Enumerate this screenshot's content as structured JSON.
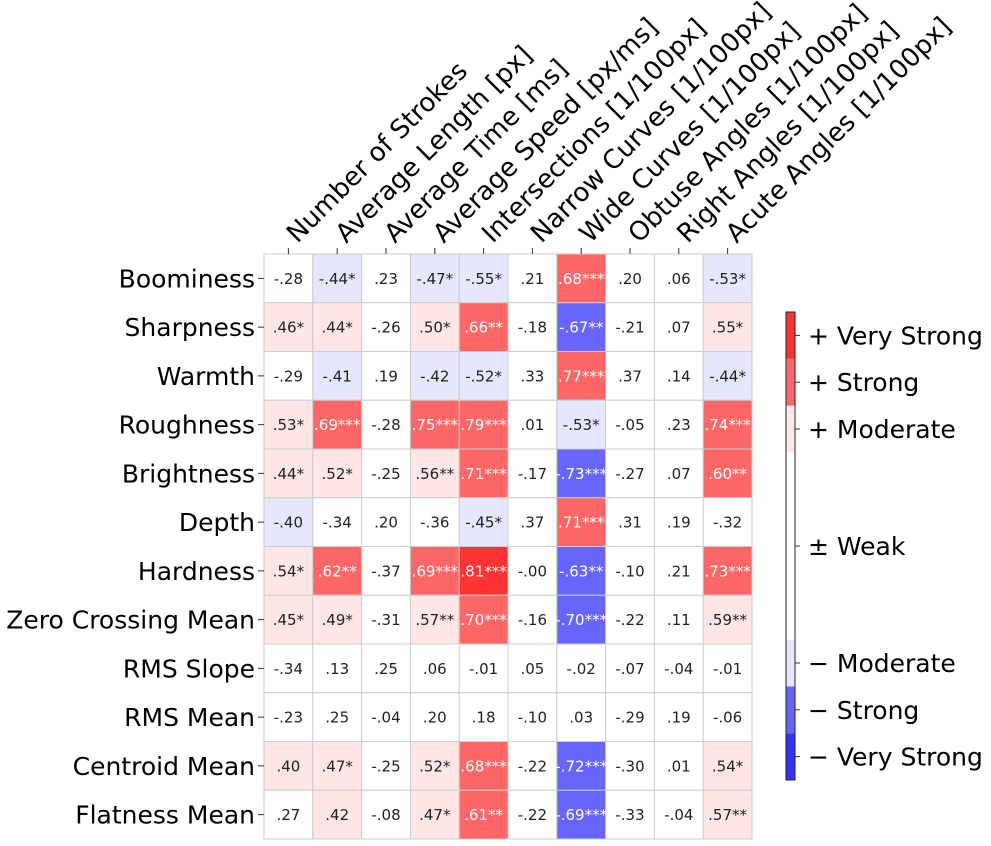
{
  "chart_data": {
    "type": "heatmap",
    "x_labels": [
      "Number of Strokes",
      "Average Length [px]",
      "Average Time [ms]",
      "Average Speed [px/ms]",
      "Intersections [1/100px]",
      "Narrow Curves [1/100px]",
      "Wide Curves [1/100px]",
      "Obtuse Angles [1/100px]",
      "Right Angles [1/100px]",
      "Acute Angles [1/100px]"
    ],
    "y_labels": [
      "Boominess",
      "Sharpness",
      "Warmth",
      "Roughness",
      "Brightness",
      "Depth",
      "Hardness",
      "Zero Crossing Mean",
      "RMS Slope",
      "RMS Mean",
      "Centroid Mean",
      "Flatness Mean"
    ],
    "values": [
      [
        -0.28,
        -0.44,
        0.23,
        -0.47,
        -0.55,
        0.21,
        0.68,
        0.2,
        0.06,
        -0.53
      ],
      [
        0.46,
        0.44,
        -0.26,
        0.5,
        0.66,
        -0.18,
        -0.67,
        -0.21,
        0.07,
        0.55
      ],
      [
        -0.29,
        -0.41,
        0.19,
        -0.42,
        -0.52,
        0.33,
        0.77,
        0.37,
        0.14,
        -0.44
      ],
      [
        0.53,
        0.69,
        -0.28,
        0.75,
        0.79,
        0.01,
        -0.53,
        -0.05,
        0.23,
        0.74
      ],
      [
        0.44,
        0.52,
        -0.25,
        0.56,
        0.71,
        -0.17,
        -0.73,
        -0.27,
        0.07,
        0.6
      ],
      [
        -0.4,
        -0.34,
        0.2,
        -0.36,
        -0.45,
        0.37,
        0.71,
        0.31,
        0.19,
        -0.32
      ],
      [
        0.54,
        0.62,
        -0.37,
        0.69,
        0.81,
        -0.0,
        -0.63,
        -0.1,
        0.21,
        0.73
      ],
      [
        0.45,
        0.49,
        -0.31,
        0.57,
        0.7,
        -0.16,
        -0.7,
        -0.22,
        0.11,
        0.59
      ],
      [
        -0.34,
        0.13,
        0.25,
        0.06,
        -0.01,
        0.05,
        -0.02,
        -0.07,
        -0.04,
        -0.01
      ],
      [
        -0.23,
        0.25,
        -0.04,
        0.2,
        0.18,
        -0.1,
        0.03,
        -0.29,
        0.19,
        -0.06
      ],
      [
        0.4,
        0.47,
        -0.25,
        0.52,
        0.68,
        -0.22,
        -0.72,
        -0.3,
        0.01,
        0.54
      ],
      [
        0.27,
        0.42,
        -0.08,
        0.47,
        0.61,
        -0.22,
        -0.69,
        -0.33,
        -0.04,
        0.57
      ]
    ],
    "cell_labels": [
      [
        "-.28",
        "-.44*",
        ".23",
        "-.47*",
        "-.55*",
        ".21",
        ".68***",
        ".20",
        ".06",
        "-.53*"
      ],
      [
        ".46*",
        ".44*",
        "-.26",
        ".50*",
        ".66**",
        "-.18",
        "-.67**",
        "-.21",
        ".07",
        ".55*"
      ],
      [
        "-.29",
        "-.41",
        ".19",
        "-.42",
        "-.52*",
        ".33",
        ".77***",
        ".37",
        ".14",
        "-.44*"
      ],
      [
        ".53*",
        ".69***",
        "-.28",
        ".75***",
        ".79***",
        ".01",
        "-.53*",
        "-.05",
        ".23",
        ".74***"
      ],
      [
        ".44*",
        ".52*",
        "-.25",
        ".56**",
        ".71***",
        "-.17",
        "-.73***",
        "-.27",
        ".07",
        ".60**"
      ],
      [
        "-.40",
        "-.34",
        ".20",
        "-.36",
        "-.45*",
        ".37",
        ".71***",
        ".31",
        ".19",
        "-.32"
      ],
      [
        ".54*",
        ".62**",
        "-.37",
        ".69***",
        ".81***",
        "-.00",
        "-.63**",
        "-.10",
        ".21",
        ".73***"
      ],
      [
        ".45*",
        ".49*",
        "-.31",
        ".57**",
        ".70***",
        "-.16",
        "-.70***",
        "-.22",
        ".11",
        ".59**"
      ],
      [
        "-.34",
        ".13",
        ".25",
        ".06",
        "-.01",
        ".05",
        "-.02",
        "-.07",
        "-.04",
        "-.01"
      ],
      [
        "-.23",
        ".25",
        "-.04",
        ".20",
        ".18",
        "-.10",
        ".03",
        "-.29",
        ".19",
        "-.06"
      ],
      [
        ".40",
        ".47*",
        "-.25",
        ".52*",
        ".68***",
        "-.22",
        "-.72***",
        "-.30",
        ".01",
        ".54*"
      ],
      [
        ".27",
        ".42",
        "-.08",
        ".47*",
        ".61**",
        "-.22",
        "-.69***",
        "-.33",
        "-.04",
        ".57**"
      ]
    ],
    "colorbar": {
      "bins": [
        {
          "label": "− Very Strong",
          "min": -1.0,
          "max": -0.8,
          "color": "#3333ff"
        },
        {
          "label": "− Strong",
          "min": -0.8,
          "max": -0.6,
          "color": "#6666ff"
        },
        {
          "label": "− Moderate",
          "min": -0.6,
          "max": -0.4,
          "color": "#e6e6ff"
        },
        {
          "label": "± Weak",
          "min": -0.4,
          "max": 0.4,
          "color": "#ffffff"
        },
        {
          "label": "+ Moderate",
          "min": 0.4,
          "max": 0.6,
          "color": "#ffe6e6"
        },
        {
          "label": "+ Strong",
          "min": 0.6,
          "max": 0.8,
          "color": "#ff6666"
        },
        {
          "label": "+ Very Strong",
          "min": 0.8,
          "max": 1.0,
          "color": "#ff3333"
        }
      ]
    },
    "grid_color": "#cccccc",
    "text_color_dark": "#222222",
    "text_color_light": "#ffffff"
  }
}
